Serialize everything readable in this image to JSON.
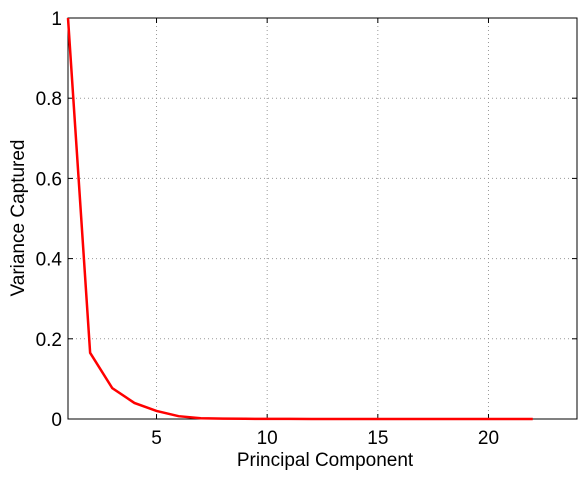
{
  "chart_data": {
    "type": "line",
    "x_label": "Principal Component",
    "y_label": "Variance Captured",
    "x": [
      1,
      2,
      3,
      4,
      5,
      6,
      7,
      8,
      9,
      10,
      11,
      12,
      13,
      14,
      15,
      16,
      17,
      18,
      19,
      20,
      21,
      22
    ],
    "series": [
      {
        "color": "#ff0000",
        "values": [
          1,
          0.165,
          0.077,
          0.04,
          0.02,
          0.007,
          0.002,
          0.001,
          0.0005,
          0.0003,
          0.0002,
          0.0001,
          0,
          0,
          0,
          0,
          0,
          0,
          0,
          0,
          0,
          0
        ]
      }
    ],
    "xlim": [
      1,
      24
    ],
    "xticks": [
      5,
      10,
      15,
      20
    ],
    "ylim": [
      0,
      1
    ],
    "yticks": [
      0,
      0.2,
      0.4,
      0.6,
      0.8,
      1
    ],
    "grid": true
  }
}
